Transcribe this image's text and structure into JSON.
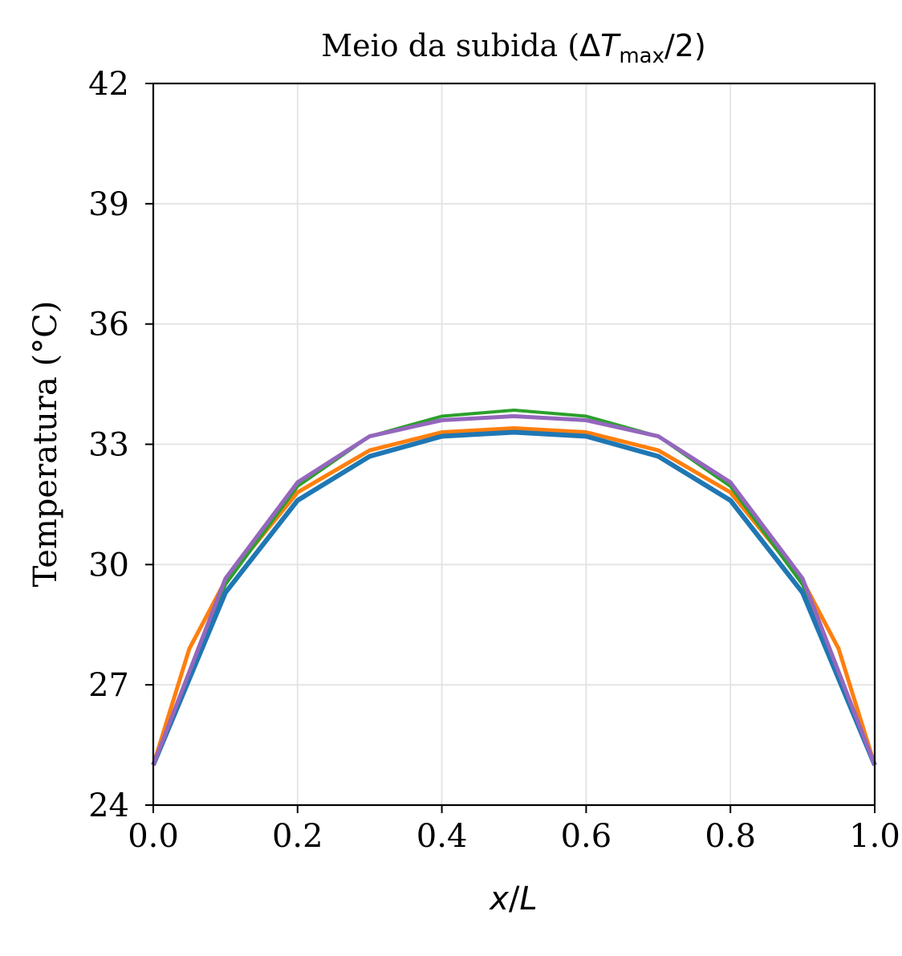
{
  "chart_data": {
    "type": "line",
    "title_main": "Meio da subida (",
    "title_delta": "Δ",
    "title_T": "T",
    "title_sub": "max",
    "title_tail": "/2)",
    "xlabel_x": "x",
    "xlabel_slash": "/",
    "xlabel_L": "L",
    "ylabel": "Temperatura (°C)",
    "xlim": [
      0.0,
      1.0
    ],
    "ylim": [
      24,
      42
    ],
    "xticks": [
      0.0,
      0.2,
      0.4,
      0.6,
      0.8,
      1.0
    ],
    "xtick_labels": [
      "0.0",
      "0.2",
      "0.4",
      "0.6",
      "0.8",
      "1.0"
    ],
    "yticks": [
      24,
      27,
      30,
      33,
      36,
      39,
      42
    ],
    "ytick_labels": [
      "24",
      "27",
      "30",
      "33",
      "36",
      "39",
      "42"
    ],
    "grid": true,
    "series": [
      {
        "color": "#ff7f0e",
        "x": [
          0.0,
          0.05,
          0.1,
          0.2,
          0.3,
          0.4,
          0.5,
          0.6,
          0.7,
          0.8,
          0.9,
          0.95,
          1.0
        ],
        "values": [
          25.0,
          27.9,
          29.6,
          31.8,
          32.85,
          33.3,
          33.4,
          33.3,
          32.85,
          31.8,
          29.6,
          27.9,
          25.0
        ]
      },
      {
        "color": "#2ca02c",
        "x": [
          0.0,
          0.1,
          0.2,
          0.3,
          0.4,
          0.5,
          0.6,
          0.7,
          0.8,
          0.9,
          1.0
        ],
        "values": [
          25.0,
          29.5,
          31.95,
          33.2,
          33.7,
          33.85,
          33.7,
          33.2,
          31.95,
          29.5,
          25.0
        ]
      },
      {
        "color": "#1f77b4",
        "x": [
          0.0,
          0.1,
          0.2,
          0.3,
          0.4,
          0.5,
          0.6,
          0.7,
          0.8,
          0.9,
          1.0
        ],
        "values": [
          25.0,
          29.3,
          31.6,
          32.7,
          33.2,
          33.3,
          33.2,
          32.7,
          31.6,
          29.3,
          25.0
        ]
      },
      {
        "color": "#9467bd",
        "x": [
          0.0,
          0.1,
          0.2,
          0.3,
          0.4,
          0.5,
          0.6,
          0.7,
          0.8,
          0.9,
          1.0
        ],
        "values": [
          25.0,
          29.65,
          32.05,
          33.2,
          33.6,
          33.7,
          33.6,
          33.2,
          32.05,
          29.65,
          25.0
        ]
      }
    ]
  }
}
